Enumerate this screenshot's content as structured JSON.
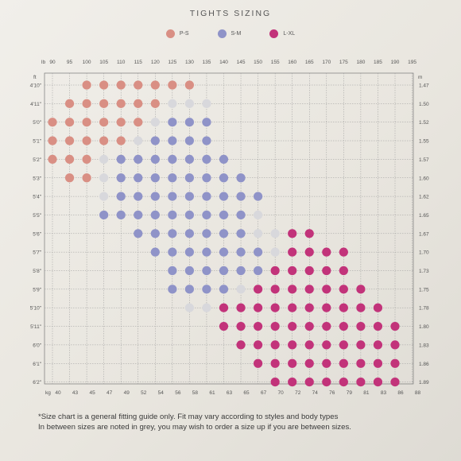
{
  "title": "TIGHTS SIZING",
  "legend": [
    {
      "label": "P-S",
      "color": "#d98f84"
    },
    {
      "label": "S-M",
      "color": "#8f93c8"
    },
    {
      "label": "L-XL",
      "color": "#c2337a"
    }
  ],
  "grey_color": "#d8d8dc",
  "chart_data": {
    "type": "heatmap",
    "title": "TIGHTS SIZING",
    "x_top_unit": "lb",
    "x_top_ticks": [
      "90",
      "95",
      "100",
      "105",
      "110",
      "115",
      "120",
      "125",
      "130",
      "135",
      "140",
      "145",
      "150",
      "155",
      "160",
      "165",
      "170",
      "175",
      "180",
      "185",
      "190",
      "195"
    ],
    "x_bottom_unit": "kg",
    "x_bottom_ticks": [
      "40",
      "43",
      "45",
      "47",
      "49",
      "52",
      "54",
      "56",
      "58",
      "61",
      "63",
      "65",
      "67",
      "70",
      "72",
      "74",
      "76",
      "79",
      "81",
      "83",
      "86",
      "88"
    ],
    "y_left_unit": "ft",
    "y_left_ticks": [
      "4'10\"",
      "4'11\"",
      "5'0\"",
      "5'1\"",
      "5'2\"",
      "5'3\"",
      "5'4\"",
      "5'5\"",
      "5'6\"",
      "5'7\"",
      "5'8\"",
      "5'9\"",
      "5'10\"",
      "5'11\"",
      "6'0\"",
      "6'1\"",
      "6'2\""
    ],
    "y_right_unit": "m",
    "y_right_ticks": [
      "1.47",
      "1.50",
      "1.52",
      "1.55",
      "1.57",
      "1.60",
      "1.62",
      "1.65",
      "1.67",
      "1.70",
      "1.73",
      "1.75",
      "1.78",
      "1.80",
      "1.83",
      "1.86",
      "1.89"
    ],
    "size_codes": {
      "P": "P-S",
      "S": "S-M",
      "L": "L-XL",
      "g": "In between sizes (grey)",
      ".": "none"
    },
    "rows": [
      "..PPPPPPP.............",
      ".PPPPPPggg............",
      "PPPPPPgSSS............",
      "PPPPPgSSSS............",
      "PPPgSSSSSSS...........",
      ".PPgSSSSSSSS..........",
      "...gSSSSSSSSS.........",
      "...SSSSSSSSSg.........",
      ".....SSSSSSSggLL......",
      "......SSSSSSSgLLLL....",
      ".......SSSSSSLLLLL....",
      ".......SSSSgLLLLLLL...",
      "........ggLLLLLLLLLL..",
      "..........LLLLLLLLLLL.",
      "...........LLLLLLLLLL.",
      "............LLLLLLLLL.",
      ".............LLLLLLLL."
    ]
  },
  "footnote": {
    "line1": "*Size chart is a general fitting guide only. Fit may vary according to styles and body types",
    "line2": "In between sizes are noted in grey, you may wish to order a size up if you are between sizes."
  }
}
